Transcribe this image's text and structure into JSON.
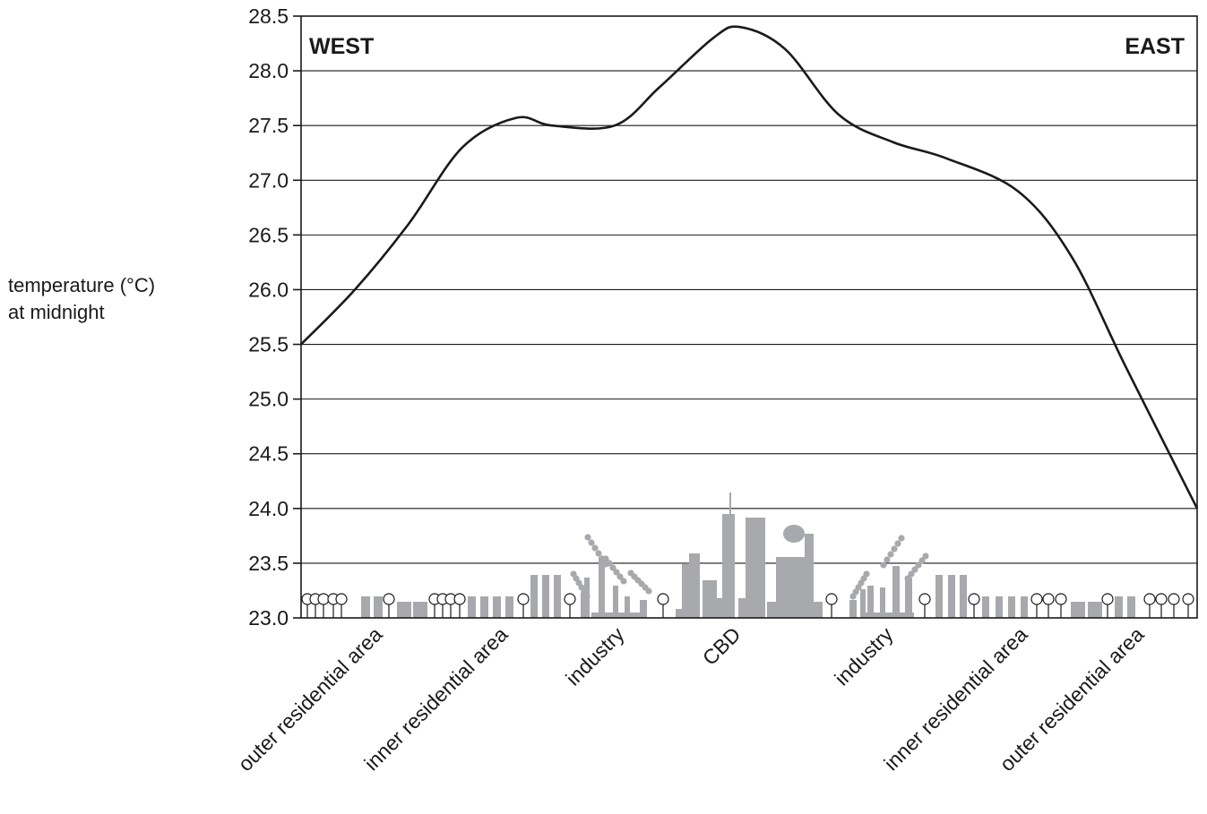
{
  "chart_data": {
    "type": "line",
    "ylabel_lines": [
      "temperature (°C)",
      "at midnight"
    ],
    "ylim": [
      23.0,
      28.5
    ],
    "yticks": [
      "23.0",
      "23.5",
      "24.0",
      "24.5",
      "25.0",
      "25.5",
      "26.0",
      "26.5",
      "27.0",
      "27.5",
      "28.0",
      "28.5"
    ],
    "grid": true,
    "corner_labels": {
      "left": "WEST",
      "right": "EAST"
    },
    "categories": [
      "outer residential area",
      "inner residential area",
      "industry",
      "CBD",
      "industry",
      "inner residential area",
      "outer residential area"
    ],
    "series": [
      {
        "x": [
          0,
          0.06,
          0.12,
          0.18,
          0.24,
          0.28,
          0.35,
          0.4,
          0.46,
          0.49,
          0.54,
          0.6,
          0.66,
          0.72,
          0.8,
          0.86,
          0.92,
          1.0
        ],
        "values": [
          25.5,
          26.0,
          26.6,
          27.3,
          27.57,
          27.5,
          27.5,
          27.85,
          28.3,
          28.4,
          28.2,
          27.6,
          27.35,
          27.2,
          26.9,
          26.3,
          25.3,
          24.0
        ]
      }
    ],
    "line_color": "#1a1a1a",
    "grid_color": "#1a1a1a",
    "illustration_color": "#a7a9ac"
  }
}
